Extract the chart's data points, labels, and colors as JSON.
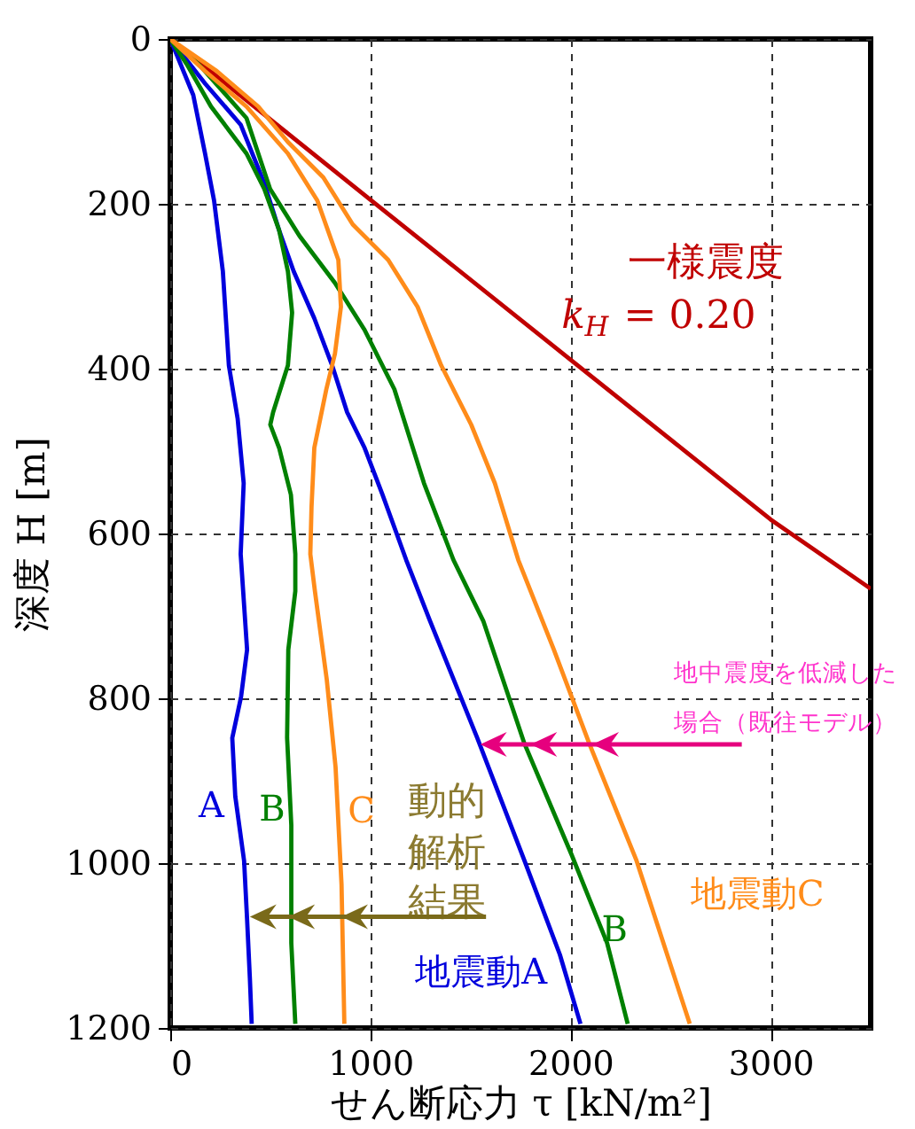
{
  "chart_data": {
    "type": "line",
    "xlabel": "せん断応力 τ [kN/m²]",
    "ylabel": "深度 H [m]",
    "xlim": [
      0,
      3500
    ],
    "xticks": [
      0,
      1000,
      2000,
      3000
    ],
    "ylim": [
      1200,
      0
    ],
    "yticks": [
      0,
      200,
      400,
      600,
      800,
      1000,
      1200
    ],
    "grid": true,
    "legend": false,
    "line_style": "solid",
    "marker": "none",
    "series": [
      {
        "color": "#c00000",
        "x": [
          0,
          1000,
          2000,
          3000,
          3500
        ],
        "values": [
          0,
          195,
          389,
          583,
          667
        ]
      },
      {
        "color": "#0000dd",
        "x": [
          0,
          174,
          352,
          470,
          544,
          617,
          720,
          809,
          884,
          971,
          1061,
          1179,
          1298,
          1534,
          1770,
          1947,
          2050
        ],
        "values": [
          0,
          54,
          104,
          175,
          232,
          282,
          339,
          396,
          453,
          496,
          553,
          632,
          706,
          848,
          997,
          1111,
          1195
        ]
      },
      {
        "color": "#008000",
        "x": [
          0,
          147,
          381,
          499,
          646,
          823,
          971,
          1120,
          1268,
          1415,
          1564,
          1770,
          2006,
          2183,
          2286
        ],
        "values": [
          0,
          32,
          96,
          182,
          239,
          296,
          353,
          425,
          539,
          632,
          706,
          855,
          990,
          1097,
          1195
        ]
      },
      {
        "color": "#ff8c1a",
        "x": [
          0,
          233,
          440,
          588,
          765,
          912,
          1089,
          1236,
          1354,
          1504,
          1622,
          1739,
          1917,
          2094,
          2330,
          2596
        ],
        "values": [
          0,
          39,
          82,
          125,
          168,
          225,
          268,
          325,
          396,
          468,
          539,
          632,
          741,
          855,
          997,
          1195
        ]
      },
      {
        "color": "#0000dd",
        "x": [
          0,
          115,
          174,
          219,
          263,
          293,
          337,
          367,
          352,
          384,
          354,
          310,
          325,
          369,
          384,
          398,
          407
        ],
        "values": [
          0,
          68,
          139,
          196,
          282,
          396,
          461,
          539,
          625,
          741,
          798,
          848,
          919,
          997,
          1068,
          1140,
          1195
        ]
      },
      {
        "color": "#008000",
        "x": [
          0,
          86,
          204,
          381,
          470,
          544,
          588,
          609,
          588,
          514,
          500,
          544,
          603,
          625,
          625,
          590,
          584,
          605,
          605,
          625
        ],
        "values": [
          0,
          32,
          82,
          139,
          182,
          232,
          282,
          332,
          396,
          453,
          468,
          496,
          553,
          625,
          670,
          741,
          848,
          954,
          1097,
          1195
        ]
      },
      {
        "color": "#ff8c1a",
        "x": [
          0,
          174,
          381,
          588,
          735,
          840,
          853,
          823,
          780,
          720,
          706,
          700,
          723,
          782,
          826,
          856,
          870
        ],
        "values": [
          0,
          39,
          82,
          139,
          196,
          268,
          325,
          382,
          425,
          496,
          568,
          625,
          670,
          777,
          883,
          1026,
          1195
        ]
      }
    ],
    "annotations": [
      "一様震度",
      "k$_{H}$ = 0.20",
      "地中震度を低減した",
      {
        "text": "場合（既往モデル）",
        "x": 1549,
        "y": 856
      },
      "A",
      "B",
      "C",
      "動的",
      "解析",
      "結果",
      "地震動A",
      {
        "text": "B",
        "x": 2209,
        "y": 1082
      },
      "地震動C"
    ]
  }
}
